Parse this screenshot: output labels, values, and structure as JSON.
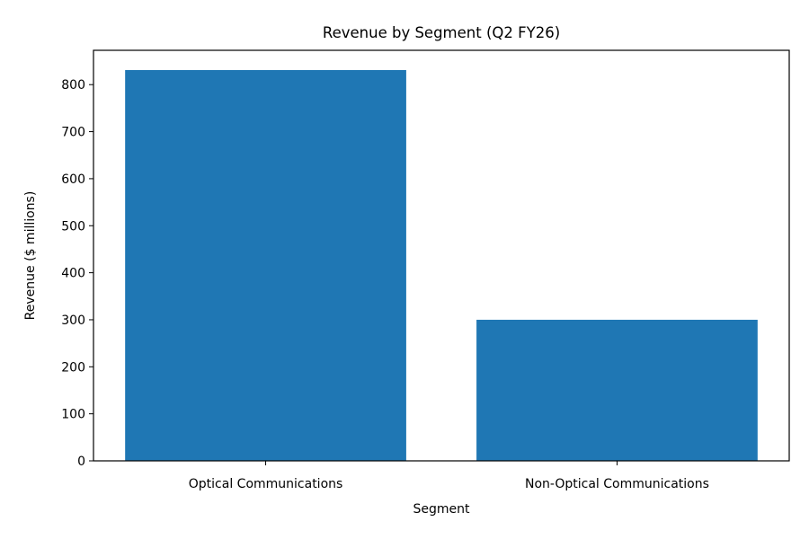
{
  "chart_data": {
    "type": "bar",
    "title": "Revenue by Segment (Q2 FY26)",
    "xlabel": "Segment",
    "ylabel": "Revenue ($ millions)",
    "categories": [
      "Optical Communications",
      "Non-Optical Communications"
    ],
    "values": [
      831,
      300
    ],
    "ylim": [
      0,
      873
    ],
    "yticks": [
      0,
      100,
      200,
      300,
      400,
      500,
      600,
      700,
      800
    ],
    "grid": false,
    "bar_color": "#1f77b4"
  }
}
